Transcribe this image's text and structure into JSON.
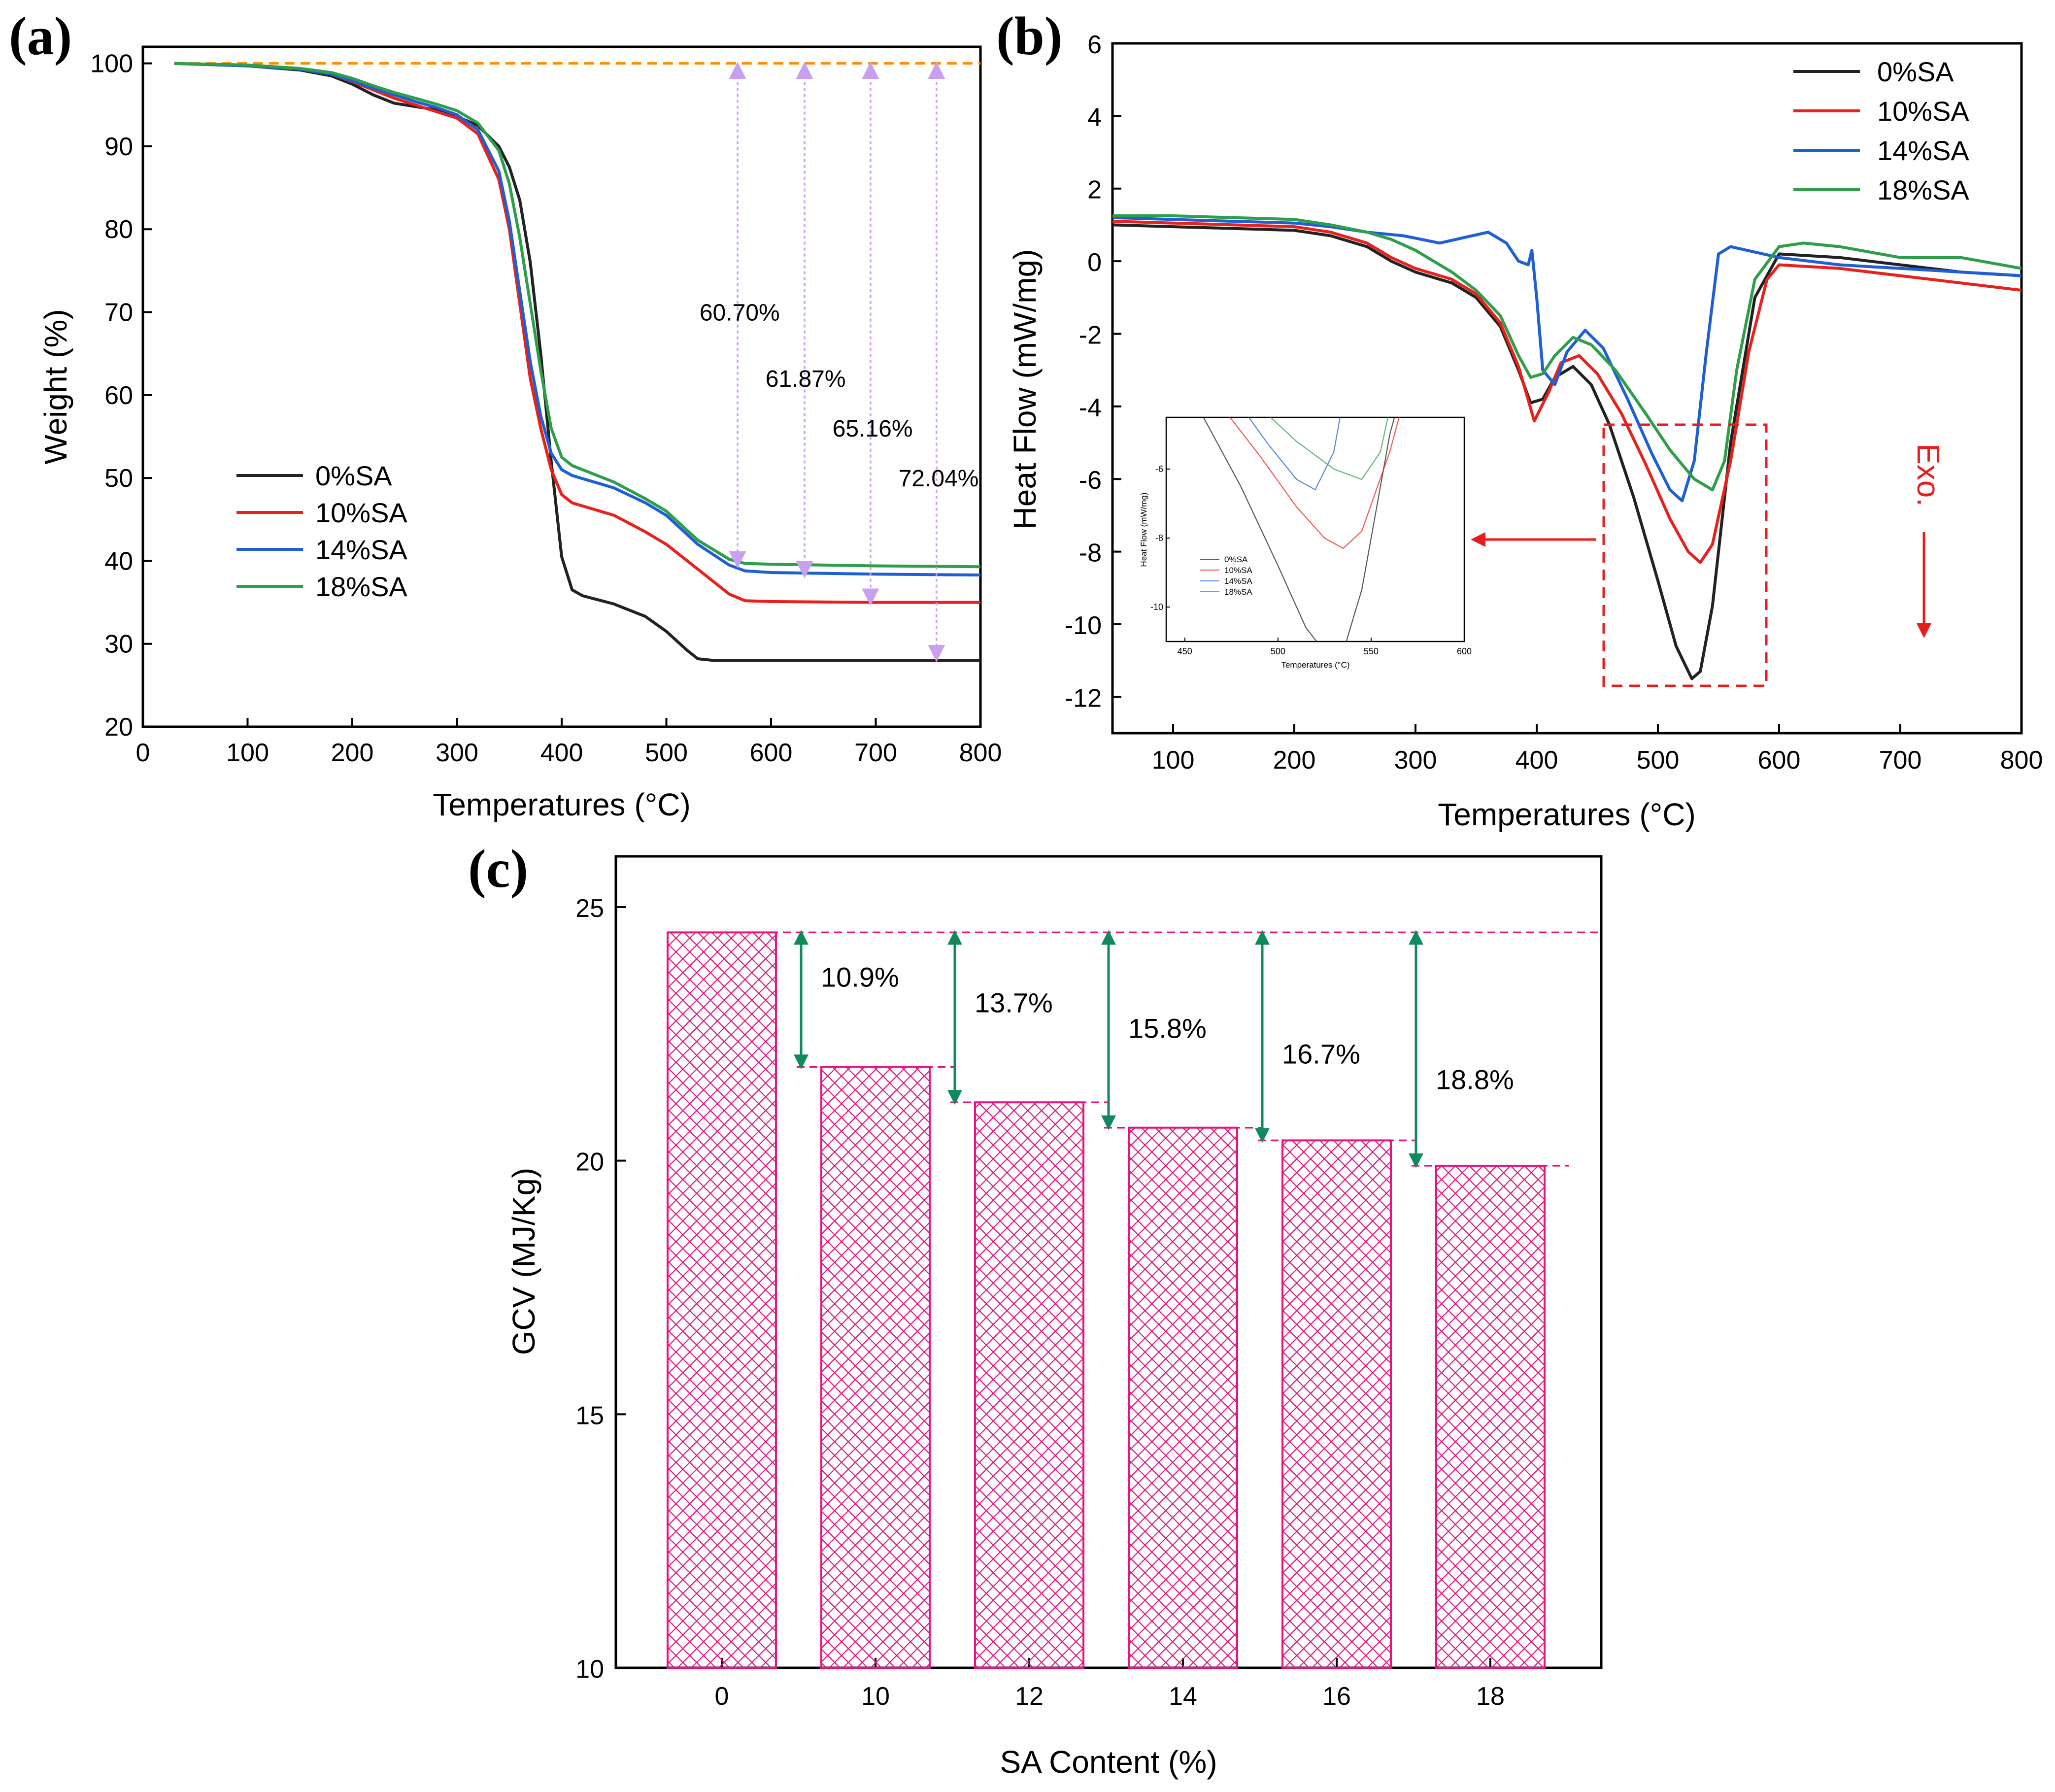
{
  "chart_data": [
    {
      "panel": "(a)",
      "type": "line",
      "xlabel": "Temperatures (°C)",
      "ylabel": "Weight (%)",
      "xlim": [
        0,
        800
      ],
      "ylim": [
        20,
        102
      ],
      "xticks": [
        "0",
        "100",
        "200",
        "300",
        "400",
        "500",
        "600",
        "700",
        "800"
      ],
      "yticks": [
        "20",
        "30",
        "40",
        "50",
        "60",
        "70",
        "80",
        "90",
        "100"
      ],
      "legend_position": "center-left",
      "reference_line": {
        "y": 100,
        "color": "#ff8c00"
      },
      "series": [
        {
          "name": "0%SA",
          "color": "#222222",
          "x": [
            30,
            100,
            150,
            180,
            200,
            220,
            240,
            260,
            280,
            300,
            320,
            340,
            350,
            360,
            370,
            380,
            390,
            400,
            410,
            420,
            450,
            480,
            500,
            520,
            530,
            545,
            600,
            700,
            800
          ],
          "y": [
            100,
            99.7,
            99.2,
            98.5,
            97.5,
            96.2,
            95.2,
            94.8,
            94.4,
            93.6,
            92.5,
            90,
            87.5,
            83.5,
            76,
            65,
            52,
            40.5,
            36.5,
            35.8,
            34.8,
            33.3,
            31.5,
            29.2,
            28.2,
            28.0,
            28.0,
            28.0,
            28.0
          ]
        },
        {
          "name": "10%SA",
          "color": "#e8211c",
          "x": [
            30,
            100,
            150,
            180,
            200,
            220,
            240,
            260,
            280,
            300,
            320,
            340,
            350,
            360,
            370,
            380,
            390,
            400,
            410,
            450,
            480,
            500,
            530,
            560,
            575,
            600,
            700,
            800
          ],
          "y": [
            100,
            99.7,
            99.3,
            98.7,
            97.8,
            96.8,
            95.8,
            95.0,
            94.2,
            93.4,
            91.5,
            86,
            80,
            71,
            62,
            56,
            51,
            48,
            47,
            45.5,
            43.5,
            42,
            39,
            36,
            35.2,
            35.1,
            35.0,
            35.0
          ]
        },
        {
          "name": "14%SA",
          "color": "#1f5fd6",
          "x": [
            30,
            100,
            150,
            180,
            200,
            220,
            240,
            260,
            280,
            300,
            320,
            340,
            350,
            360,
            370,
            380,
            390,
            400,
            410,
            450,
            480,
            500,
            530,
            560,
            575,
            600,
            700,
            800
          ],
          "y": [
            100,
            99.7,
            99.3,
            98.7,
            97.9,
            97.0,
            96.2,
            95.4,
            94.7,
            93.8,
            92,
            87,
            81,
            72.5,
            64,
            57.5,
            53,
            51,
            50.3,
            48.8,
            47,
            45.5,
            42,
            39.5,
            38.8,
            38.6,
            38.4,
            38.3
          ]
        },
        {
          "name": "18%SA",
          "color": "#2e9e4a",
          "x": [
            30,
            100,
            150,
            180,
            200,
            220,
            240,
            260,
            280,
            300,
            320,
            340,
            350,
            360,
            370,
            380,
            390,
            400,
            410,
            450,
            480,
            500,
            530,
            560,
            575,
            600,
            700,
            800
          ],
          "y": [
            100,
            99.8,
            99.4,
            98.9,
            98.2,
            97.3,
            96.5,
            95.8,
            95.1,
            94.3,
            92.8,
            89.5,
            85.5,
            79,
            71,
            63,
            56,
            52.5,
            51.5,
            49.5,
            47.5,
            46,
            42.5,
            40.2,
            39.7,
            39.6,
            39.4,
            39.3
          ]
        }
      ],
      "annotations": [
        {
          "x": 568,
          "y_top": 100,
          "y_bottom": 39.3,
          "label": "60.70%",
          "label_x": 570,
          "label_y": 69
        },
        {
          "x": 632,
          "y_top": 100,
          "y_bottom": 38.1,
          "label": "61.87%",
          "label_x": 633,
          "label_y": 61
        },
        {
          "x": 695,
          "y_top": 100,
          "y_bottom": 34.8,
          "label": "65.16%",
          "label_x": 697,
          "label_y": 55
        },
        {
          "x": 758,
          "y_top": 100,
          "y_bottom": 28.0,
          "label": "72.04%",
          "label_x": 760,
          "label_y": 49
        }
      ]
    },
    {
      "panel": "(b)",
      "type": "line",
      "xlabel": "Temperatures (°C)",
      "ylabel": "Heat Flow (mW/mg)",
      "xlim": [
        50,
        800
      ],
      "ylim": [
        -13,
        6
      ],
      "xticks": [
        "100",
        "200",
        "300",
        "400",
        "500",
        "600",
        "700",
        "800"
      ],
      "yticks": [
        "6",
        "4",
        "2",
        "0",
        "-2",
        "-4",
        "-6",
        "-8",
        "-10",
        "-12"
      ],
      "legend_position": "top-right",
      "exo_label": "Exo.",
      "series": [
        {
          "name": "0%SA",
          "color": "#222222",
          "x": [
            50,
            100,
            150,
            200,
            230,
            260,
            280,
            300,
            330,
            350,
            370,
            385,
            395,
            405,
            415,
            430,
            445,
            460,
            480,
            500,
            515,
            528,
            535,
            545,
            560,
            580,
            600,
            650,
            700,
            750,
            800
          ],
          "y": [
            1.0,
            0.95,
            0.9,
            0.85,
            0.7,
            0.4,
            0.0,
            -0.3,
            -0.6,
            -1.0,
            -1.8,
            -3.0,
            -3.9,
            -3.8,
            -3.2,
            -2.9,
            -3.4,
            -4.5,
            -6.5,
            -8.8,
            -10.6,
            -11.5,
            -11.3,
            -9.5,
            -5,
            -1.0,
            0.2,
            0.1,
            -0.1,
            -0.3,
            -0.4
          ]
        },
        {
          "name": "10%SA",
          "color": "#e8211c",
          "x": [
            50,
            100,
            150,
            200,
            230,
            260,
            280,
            300,
            330,
            350,
            370,
            385,
            398,
            410,
            420,
            435,
            450,
            470,
            490,
            510,
            525,
            535,
            545,
            560,
            575,
            590,
            600,
            650,
            700,
            750,
            800
          ],
          "y": [
            1.1,
            1.05,
            1.0,
            0.95,
            0.8,
            0.5,
            0.1,
            -0.2,
            -0.5,
            -0.9,
            -1.7,
            -2.9,
            -4.4,
            -3.6,
            -2.8,
            -2.6,
            -3.1,
            -4.2,
            -5.6,
            -7.1,
            -8.0,
            -8.3,
            -7.8,
            -5.5,
            -2.5,
            -0.5,
            -0.1,
            -0.2,
            -0.4,
            -0.6,
            -0.8
          ]
        },
        {
          "name": "14%SA",
          "color": "#1f5fd6",
          "x": [
            50,
            100,
            150,
            200,
            230,
            260,
            290,
            320,
            340,
            360,
            375,
            385,
            393,
            396,
            400,
            405,
            415,
            425,
            440,
            455,
            475,
            495,
            510,
            520,
            530,
            540,
            550,
            560,
            600,
            650,
            700,
            750,
            800
          ],
          "y": [
            1.2,
            1.15,
            1.1,
            1.05,
            0.95,
            0.8,
            0.7,
            0.5,
            0.65,
            0.8,
            0.5,
            0.0,
            -0.1,
            0.3,
            -1.0,
            -3.0,
            -3.4,
            -2.5,
            -1.9,
            -2.4,
            -3.8,
            -5.3,
            -6.3,
            -6.6,
            -5.5,
            -2.5,
            0.2,
            0.4,
            0.1,
            -0.1,
            -0.2,
            -0.3,
            -0.4
          ]
        },
        {
          "name": "18%SA",
          "color": "#2e9e4a",
          "x": [
            50,
            100,
            150,
            200,
            230,
            260,
            280,
            300,
            330,
            350,
            370,
            385,
            395,
            405,
            415,
            430,
            445,
            465,
            490,
            510,
            530,
            545,
            555,
            565,
            580,
            600,
            620,
            650,
            700,
            750,
            800
          ],
          "y": [
            1.25,
            1.25,
            1.2,
            1.15,
            1.0,
            0.8,
            0.6,
            0.3,
            -0.3,
            -0.8,
            -1.5,
            -2.6,
            -3.2,
            -3.1,
            -2.6,
            -2.1,
            -2.3,
            -3.0,
            -4.2,
            -5.2,
            -6.0,
            -6.3,
            -5.5,
            -3.0,
            -0.5,
            0.4,
            0.5,
            0.4,
            0.1,
            0.1,
            -0.2
          ]
        }
      ],
      "inset": {
        "xlabel": "Temperatures (°C)",
        "ylabel": "Heat Flow (mW/mg)",
        "xlim": [
          440,
          600
        ],
        "ylim": [
          -11,
          -4.5
        ],
        "xticks": [
          "450",
          "500",
          "550",
          "600"
        ],
        "yticks": [
          "-6",
          "-8",
          "-10"
        ],
        "legend": [
          "0%SA",
          "10%SA",
          "14%SA",
          "18%SA"
        ]
      }
    },
    {
      "panel": "(c)",
      "type": "bar",
      "xlabel": "SA Content (%)",
      "ylabel": "GCV (MJ/Kg)",
      "categories": [
        "0",
        "10",
        "12",
        "14",
        "16",
        "18"
      ],
      "values": [
        24.5,
        21.85,
        21.15,
        20.65,
        20.4,
        19.9
      ],
      "ylim": [
        10,
        26
      ],
      "yticks": [
        "10",
        "15",
        "20",
        "25"
      ],
      "bar_color": "#e8147d",
      "arrow_color": "#0f8a5f",
      "reductions": [
        "10.9%",
        "13.7%",
        "15.8%",
        "16.7%",
        "18.8%"
      ]
    }
  ]
}
